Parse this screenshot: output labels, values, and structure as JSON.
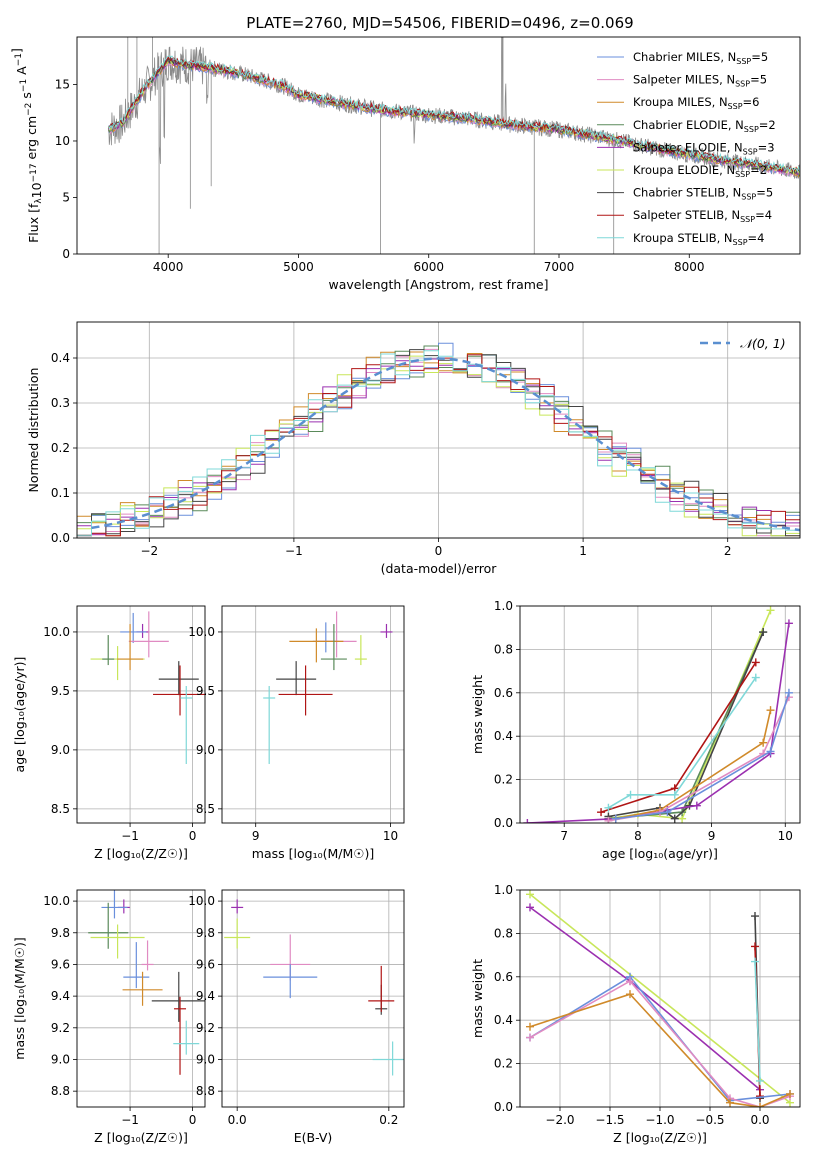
{
  "figure": {
    "title": "PLATE=2760, MJD=54506, FIBERID=0496, z=0.069"
  },
  "colors": {
    "chabrier_miles": "#6a8fdc",
    "salpeter_miles": "#e08bc2",
    "kroupa_miles": "#d08a2a",
    "chabrier_elodie": "#5a8a5a",
    "salpeter_elodie": "#9b30b0",
    "kroupa_elodie": "#c8e65a",
    "chabrier_stelib": "#444444",
    "salpeter_stelib": "#b01515",
    "kroupa_stelib": "#7fd8d8",
    "orange": "#e07a2a",
    "data_gray": "#8a8a8a",
    "gauss": "#5a8fd0"
  },
  "legend_spectrum": [
    {
      "label": "Chabrier MILES, N",
      "sub": "SSP",
      "suffix": "=5",
      "color": "#6a8fdc"
    },
    {
      "label": "Salpeter MILES, N",
      "sub": "SSP",
      "suffix": "=5",
      "color": "#e08bc2"
    },
    {
      "label": "Kroupa MILES, N",
      "sub": "SSP",
      "suffix": "=6",
      "color": "#d08a2a"
    },
    {
      "label": "Chabrier ELODIE, N",
      "sub": "SSP",
      "suffix": "=2",
      "color": "#5a8a5a"
    },
    {
      "label": "Salpeter ELODIE, N",
      "sub": "SSP",
      "suffix": "=3",
      "color": "#9b30b0"
    },
    {
      "label": "Kroupa ELODIE, N",
      "sub": "SSP",
      "suffix": "=2",
      "color": "#c8e65a"
    },
    {
      "label": "Chabrier STELIB, N",
      "sub": "SSP",
      "suffix": "=5",
      "color": "#444444"
    },
    {
      "label": "Salpeter STELIB, N",
      "sub": "SSP",
      "suffix": "=4",
      "color": "#b01515"
    },
    {
      "label": "Kroupa STELIB, N",
      "sub": "SSP",
      "suffix": "=4",
      "color": "#7fd8d8"
    }
  ],
  "chart_data": [
    {
      "type": "line",
      "id": "spectrum",
      "xlabel": "wavelength [Angstrom, rest frame]",
      "ylabel_parts": [
        "Flux [f",
        "λ",
        "10",
        "−17",
        " erg cm",
        "−2",
        " s",
        "−1",
        " A",
        "−1",
        "]"
      ],
      "xlim": [
        3300,
        8850
      ],
      "ylim": [
        0,
        19.2
      ],
      "xticks": [
        4000,
        5000,
        6000,
        7000,
        8000
      ],
      "yticks": [
        0,
        5,
        10,
        15
      ],
      "continuum": [
        [
          3540,
          11.0
        ],
        [
          3650,
          11.6
        ],
        [
          3800,
          14.3
        ],
        [
          3900,
          15.8
        ],
        [
          4000,
          17.1
        ],
        [
          4100,
          16.8
        ],
        [
          4300,
          16.5
        ],
        [
          4500,
          16.1
        ],
        [
          4700,
          15.5
        ],
        [
          4900,
          14.8
        ],
        [
          5000,
          14.1
        ],
        [
          5300,
          13.4
        ],
        [
          5600,
          12.8
        ],
        [
          6000,
          12.3
        ],
        [
          6300,
          12.0
        ],
        [
          6600,
          11.5
        ],
        [
          7000,
          11.0
        ],
        [
          7400,
          10.2
        ],
        [
          7800,
          9.2
        ],
        [
          8200,
          8.4
        ],
        [
          8500,
          7.9
        ],
        [
          8850,
          7.2
        ]
      ]
    },
    {
      "type": "line",
      "id": "residual_hist",
      "xlabel": "(data-model)/error",
      "ylabel": "Normed distribution",
      "legend": "𝒩(0, 1)",
      "xlim": [
        -2.5,
        2.5
      ],
      "ylim": [
        0,
        0.48
      ],
      "xticks": [
        -2,
        -1,
        0,
        1,
        2
      ],
      "yticks": [
        0.0,
        0.1,
        0.2,
        0.3,
        0.4
      ]
    },
    {
      "type": "scatter",
      "id": "age_vs_Z",
      "xlabel": "Z [log₁₀(Z/Z☉)]",
      "ylabel": "age  [log₁₀(age/yr)]",
      "xlim": [
        -1.85,
        0.2
      ],
      "ylim": [
        8.38,
        10.22
      ],
      "xticks": [
        -1,
        0
      ],
      "yticks": [
        8.5,
        9.0,
        9.5,
        10.0
      ],
      "points": [
        {
          "x": -0.8,
          "y": 10.0,
          "color": "#9b30b0"
        },
        {
          "x": -0.95,
          "y": 10.0,
          "color": "#6a8fdc"
        },
        {
          "x": -0.7,
          "y": 9.92,
          "color": "#e08bc2"
        },
        {
          "x": -1.2,
          "y": 9.77,
          "color": "#c8e65a"
        },
        {
          "x": -1.35,
          "y": 9.77,
          "color": "#5a8a5a"
        },
        {
          "x": -1.0,
          "y": 9.77,
          "color": "#d08a2a"
        },
        {
          "x": -0.22,
          "y": 9.6,
          "color": "#444444"
        },
        {
          "x": -0.2,
          "y": 9.47,
          "color": "#b01515"
        },
        {
          "x": -0.1,
          "y": 9.44,
          "color": "#7fd8d8"
        }
      ]
    },
    {
      "type": "scatter",
      "id": "age_vs_mass",
      "xlabel": "mass [log₁₀(M/M☉)]",
      "ylabel": "",
      "xlim": [
        8.75,
        10.1
      ],
      "ylim": [
        8.38,
        10.22
      ],
      "xticks": [
        9,
        10
      ],
      "yticks": [
        8.5,
        9.0,
        9.5,
        10.0
      ],
      "points": [
        {
          "x": 9.97,
          "y": 10.0,
          "color": "#9b30b0"
        },
        {
          "x": 9.52,
          "y": 9.92,
          "color": "#6a8fdc"
        },
        {
          "x": 9.6,
          "y": 9.92,
          "color": "#e08bc2"
        },
        {
          "x": 9.45,
          "y": 9.92,
          "color": "#d08a2a"
        },
        {
          "x": 9.78,
          "y": 9.77,
          "color": "#c8e65a"
        },
        {
          "x": 9.58,
          "y": 9.77,
          "color": "#5a8a5a"
        },
        {
          "x": 9.3,
          "y": 9.6,
          "color": "#444444"
        },
        {
          "x": 9.37,
          "y": 9.47,
          "color": "#b01515"
        },
        {
          "x": 9.1,
          "y": 9.44,
          "color": "#7fd8d8"
        }
      ]
    },
    {
      "type": "line",
      "id": "massweight_vs_age",
      "xlabel": "age  [log₁₀(age/yr)]",
      "ylabel": "mass weight",
      "xlim": [
        6.4,
        10.2
      ],
      "ylim": [
        0,
        1.0
      ],
      "xticks": [
        7,
        8,
        9,
        10
      ],
      "yticks": [
        0.0,
        0.2,
        0.4,
        0.6,
        0.8,
        1.0
      ],
      "series": [
        {
          "color": "#c8e65a",
          "x": [
            7.6,
            8.0,
            8.6,
            9.8
          ],
          "y": [
            0.02,
            0.04,
            0.02,
            0.98
          ]
        },
        {
          "color": "#5a8a5a",
          "x": [
            7.6,
            8.6,
            9.7
          ],
          "y": [
            0.02,
            0.05,
            0.88
          ]
        },
        {
          "color": "#444444",
          "x": [
            7.6,
            8.3,
            8.5,
            8.7,
            9.7
          ],
          "y": [
            0.03,
            0.07,
            0.02,
            0.08,
            0.88
          ]
        },
        {
          "color": "#9b30b0",
          "x": [
            6.5,
            7.7,
            8.4,
            8.8,
            9.8,
            10.05
          ],
          "y": [
            0.0,
            0.02,
            0.06,
            0.08,
            0.32,
            0.92
          ]
        },
        {
          "color": "#b01515",
          "x": [
            7.5,
            8.5,
            9.6
          ],
          "y": [
            0.05,
            0.16,
            0.74
          ]
        },
        {
          "color": "#7fd8d8",
          "x": [
            7.6,
            7.9,
            8.5,
            9.6
          ],
          "y": [
            0.07,
            0.13,
            0.13,
            0.67
          ]
        },
        {
          "color": "#d08a2a",
          "x": [
            7.7,
            8.3,
            9.7,
            9.8
          ],
          "y": [
            0.02,
            0.06,
            0.37,
            0.52
          ]
        },
        {
          "color": "#e08bc2",
          "x": [
            7.6,
            8.3,
            9.7,
            10.05
          ],
          "y": [
            0.01,
            0.05,
            0.32,
            0.58
          ]
        },
        {
          "color": "#6a8fdc",
          "x": [
            7.7,
            8.4,
            9.8,
            10.05
          ],
          "y": [
            0.02,
            0.05,
            0.33,
            0.6
          ]
        }
      ]
    },
    {
      "type": "scatter",
      "id": "mass_vs_Z",
      "xlabel": "Z [log₁₀(Z/Z☉)]",
      "ylabel": "mass [log₁₀(M/M☉)]",
      "xlim": [
        -1.85,
        0.2
      ],
      "ylim": [
        8.7,
        10.07
      ],
      "xticks": [
        -1,
        0
      ],
      "yticks": [
        8.8,
        9.0,
        9.2,
        9.4,
        9.6,
        9.8,
        10.0
      ],
      "points": [
        {
          "x": -1.1,
          "y": 9.96,
          "color": "#9b30b0"
        },
        {
          "x": -1.25,
          "y": 9.96,
          "color": "#6a8fdc"
        },
        {
          "x": -1.35,
          "y": 9.8,
          "color": "#5a8a5a"
        },
        {
          "x": -1.2,
          "y": 9.77,
          "color": "#c8e65a"
        },
        {
          "x": -0.72,
          "y": 9.6,
          "color": "#e08bc2"
        },
        {
          "x": -0.9,
          "y": 9.52,
          "color": "#6a8fdc"
        },
        {
          "x": -0.8,
          "y": 9.44,
          "color": "#d08a2a"
        },
        {
          "x": -0.22,
          "y": 9.37,
          "color": "#444444"
        },
        {
          "x": -0.2,
          "y": 9.32,
          "color": "#b01515"
        },
        {
          "x": -0.1,
          "y": 9.1,
          "color": "#7fd8d8"
        }
      ]
    },
    {
      "type": "scatter",
      "id": "mass_vs_EBV",
      "xlabel": "E(B-V)",
      "ylabel": "",
      "xlim": [
        -0.02,
        0.22
      ],
      "ylim": [
        8.7,
        10.07
      ],
      "xticks": [
        0.0,
        0.2
      ],
      "yticks": [
        8.8,
        9.0,
        9.2,
        9.4,
        9.6,
        9.8,
        10.0
      ],
      "points": [
        {
          "x": 0.0,
          "y": 9.96,
          "color": "#9b30b0"
        },
        {
          "x": 0.0,
          "y": 9.77,
          "color": "#c8e65a"
        },
        {
          "x": 0.07,
          "y": 9.6,
          "color": "#e08bc2"
        },
        {
          "x": 0.07,
          "y": 9.52,
          "color": "#6a8fdc"
        },
        {
          "x": 0.19,
          "y": 9.32,
          "color": "#444444"
        },
        {
          "x": 0.19,
          "y": 9.37,
          "color": "#b01515"
        },
        {
          "x": 0.205,
          "y": 9.0,
          "color": "#7fd8d8"
        }
      ]
    },
    {
      "type": "line",
      "id": "massweight_vs_Z",
      "xlabel": "Z [log₁₀(Z/Z☉)]",
      "ylabel": "mass weight",
      "xlim": [
        -2.4,
        0.4
      ],
      "ylim": [
        0,
        1.0
      ],
      "xticks": [
        -2.0,
        -1.5,
        -1.0,
        -0.5,
        0.0
      ],
      "yticks": [
        0.0,
        0.2,
        0.4,
        0.6,
        0.8,
        1.0
      ],
      "series": [
        {
          "color": "#c8e65a",
          "x": [
            -2.3,
            0.3
          ],
          "y": [
            0.98,
            0.02
          ]
        },
        {
          "color": "#9b30b0",
          "x": [
            -2.3,
            -1.3,
            0.0
          ],
          "y": [
            0.92,
            0.58,
            0.08
          ]
        },
        {
          "color": "#444444",
          "x": [
            -0.05,
            0.0
          ],
          "y": [
            0.88,
            0.04
          ]
        },
        {
          "color": "#b01515",
          "x": [
            -0.05,
            0.0
          ],
          "y": [
            0.74,
            0.05
          ]
        },
        {
          "color": "#7fd8d8",
          "x": [
            -0.05,
            0.0
          ],
          "y": [
            0.67,
            0.12
          ]
        },
        {
          "color": "#6a8fdc",
          "x": [
            -2.3,
            -1.3,
            -0.3,
            0.3
          ],
          "y": [
            0.32,
            0.6,
            0.03,
            0.06
          ]
        },
        {
          "color": "#e08bc2",
          "x": [
            -2.3,
            -1.3,
            -0.3,
            0.0,
            0.3
          ],
          "y": [
            0.32,
            0.58,
            0.04,
            0.0,
            0.05
          ]
        },
        {
          "color": "#d08a2a",
          "x": [
            -2.3,
            -1.3,
            -0.3,
            0.0,
            0.3
          ],
          "y": [
            0.37,
            0.52,
            0.02,
            0.0,
            0.06
          ]
        }
      ]
    }
  ]
}
